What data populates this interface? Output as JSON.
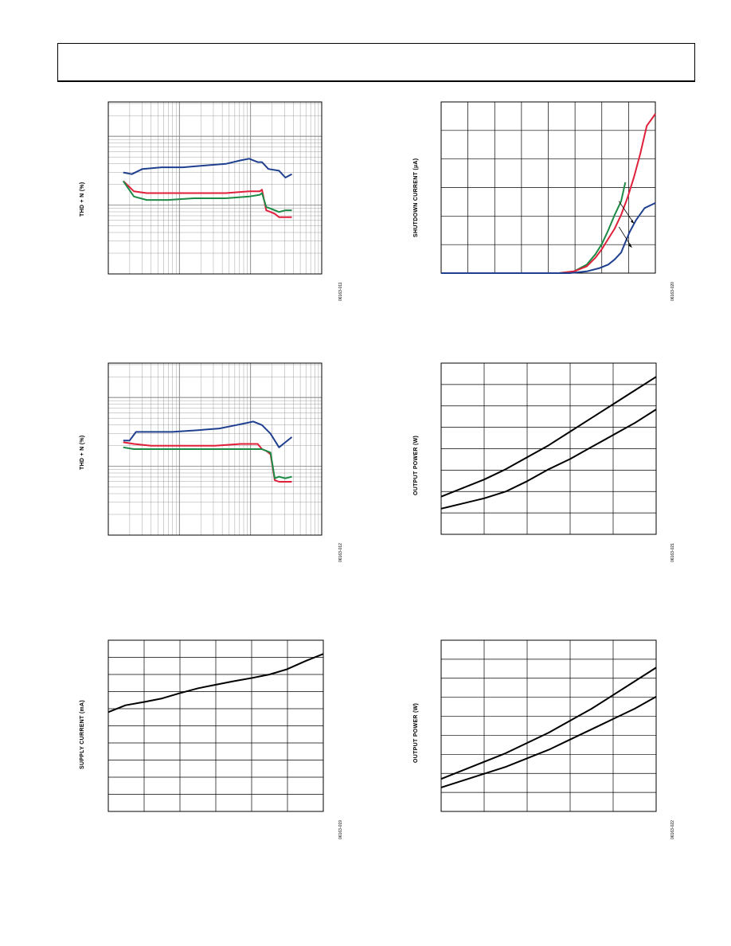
{
  "page": {
    "header_text": ""
  },
  "colors": {
    "blue": "#1f3f8f",
    "red": "#e0203a",
    "green": "#1d8a45",
    "black": "#000000",
    "grid": "#8c8c8c"
  },
  "chart_data": [
    {
      "id": "thd-left-1",
      "type": "line",
      "ylabel": "THD + N (%)",
      "figure_id": "06163-011",
      "xscale": "log",
      "yscale": "log",
      "grid": true,
      "xlim": [
        0,
        1
      ],
      "ylim": [
        0,
        1
      ],
      "series": [
        {
          "color": "blue",
          "x": [
            0.07,
            0.11,
            0.16,
            0.25,
            0.35,
            0.45,
            0.55,
            0.62,
            0.66,
            0.7,
            0.72,
            0.75,
            0.8,
            0.83,
            0.86
          ],
          "y": [
            0.59,
            0.58,
            0.61,
            0.62,
            0.62,
            0.63,
            0.64,
            0.66,
            0.67,
            0.65,
            0.65,
            0.61,
            0.6,
            0.56,
            0.58
          ]
        },
        {
          "color": "red",
          "x": [
            0.07,
            0.12,
            0.18,
            0.28,
            0.4,
            0.55,
            0.66,
            0.71,
            0.72,
            0.74,
            0.76,
            0.78,
            0.8,
            0.83,
            0.86
          ],
          "y": [
            0.54,
            0.48,
            0.47,
            0.47,
            0.47,
            0.47,
            0.48,
            0.48,
            0.49,
            0.37,
            0.36,
            0.35,
            0.33,
            0.33,
            0.33
          ]
        },
        {
          "color": "green",
          "x": [
            0.07,
            0.12,
            0.18,
            0.28,
            0.4,
            0.55,
            0.66,
            0.71,
            0.72,
            0.74,
            0.76,
            0.8,
            0.83,
            0.86
          ],
          "y": [
            0.54,
            0.45,
            0.43,
            0.43,
            0.44,
            0.44,
            0.45,
            0.46,
            0.47,
            0.39,
            0.38,
            0.36,
            0.37,
            0.37
          ]
        }
      ]
    },
    {
      "id": "shutdown-current",
      "type": "line",
      "ylabel": "SHUTDOWN CURRENT (µA)",
      "figure_id": "06163-020",
      "grid": true,
      "xdivs": 8,
      "ydivs": 6,
      "xlim": [
        0,
        1
      ],
      "ylim": [
        0,
        1
      ],
      "annotations": [
        {
          "type": "arrow"
        },
        {
          "type": "arrow"
        }
      ],
      "series": [
        {
          "color": "green",
          "x": [
            0,
            0.55,
            0.62,
            0.68,
            0.72,
            0.75,
            0.78,
            0.81,
            0.84,
            0.86
          ],
          "y": [
            0,
            0,
            0.01,
            0.05,
            0.11,
            0.17,
            0.25,
            0.34,
            0.42,
            0.53
          ]
        },
        {
          "color": "red",
          "x": [
            0,
            0.55,
            0.62,
            0.68,
            0.72,
            0.75,
            0.78,
            0.81,
            0.84,
            0.87,
            0.9,
            0.93,
            0.96,
            1.0
          ],
          "y": [
            0,
            0,
            0.01,
            0.04,
            0.09,
            0.14,
            0.2,
            0.26,
            0.34,
            0.44,
            0.56,
            0.7,
            0.86,
            0.93
          ]
        },
        {
          "color": "blue",
          "x": [
            0,
            0.6,
            0.68,
            0.74,
            0.78,
            0.81,
            0.84,
            0.86,
            0.88,
            0.91,
            0.95,
            1.0
          ],
          "y": [
            0,
            0,
            0.01,
            0.03,
            0.05,
            0.08,
            0.12,
            0.18,
            0.24,
            0.31,
            0.38,
            0.41
          ]
        }
      ]
    },
    {
      "id": "thd-left-2",
      "type": "line",
      "ylabel": "THD + N (%)",
      "figure_id": "06163-012",
      "xscale": "log",
      "yscale": "log",
      "grid": true,
      "xlim": [
        0,
        1
      ],
      "ylim": [
        0,
        1
      ],
      "series": [
        {
          "color": "blue",
          "x": [
            0.07,
            0.1,
            0.13,
            0.2,
            0.3,
            0.42,
            0.52,
            0.6,
            0.64,
            0.68,
            0.72,
            0.76,
            0.8,
            0.83,
            0.86
          ],
          "y": [
            0.55,
            0.55,
            0.6,
            0.6,
            0.6,
            0.61,
            0.62,
            0.64,
            0.65,
            0.66,
            0.64,
            0.59,
            0.51,
            0.54,
            0.57
          ]
        },
        {
          "color": "red",
          "x": [
            0.07,
            0.12,
            0.2,
            0.35,
            0.5,
            0.62,
            0.7,
            0.72,
            0.74,
            0.76,
            0.78,
            0.8,
            0.83,
            0.86
          ],
          "y": [
            0.54,
            0.53,
            0.52,
            0.52,
            0.52,
            0.53,
            0.53,
            0.5,
            0.49,
            0.47,
            0.32,
            0.31,
            0.31,
            0.31
          ]
        },
        {
          "color": "green",
          "x": [
            0.07,
            0.12,
            0.2,
            0.35,
            0.5,
            0.62,
            0.7,
            0.72,
            0.74,
            0.76,
            0.78,
            0.8,
            0.83,
            0.86
          ],
          "y": [
            0.51,
            0.5,
            0.5,
            0.5,
            0.5,
            0.5,
            0.5,
            0.5,
            0.49,
            0.48,
            0.33,
            0.34,
            0.33,
            0.34
          ]
        }
      ]
    },
    {
      "id": "output-power-1",
      "type": "line",
      "ylabel": "OUTPUT POWER (W)",
      "figure_id": "06163-021",
      "grid": true,
      "xdivs": 5,
      "ydivs": 8,
      "xlim": [
        0,
        1
      ],
      "ylim": [
        0,
        1
      ],
      "series": [
        {
          "color": "black",
          "x": [
            0,
            0.1,
            0.2,
            0.3,
            0.4,
            0.5,
            0.6,
            0.7,
            0.8,
            0.9,
            1.0
          ],
          "y": [
            0.22,
            0.27,
            0.32,
            0.38,
            0.45,
            0.52,
            0.6,
            0.68,
            0.76,
            0.84,
            0.92
          ]
        },
        {
          "color": "black",
          "x": [
            0,
            0.1,
            0.2,
            0.3,
            0.4,
            0.5,
            0.6,
            0.7,
            0.8,
            0.9,
            1.0
          ],
          "y": [
            0.15,
            0.18,
            0.21,
            0.25,
            0.31,
            0.38,
            0.44,
            0.51,
            0.58,
            0.65,
            0.73
          ]
        }
      ]
    },
    {
      "id": "supply-current",
      "type": "line",
      "ylabel": "SUPPLY CURRENT (mA)",
      "figure_id": "06163-019",
      "grid": true,
      "xdivs": 6,
      "ydivs": 10,
      "xlim": [
        0,
        1
      ],
      "ylim": [
        0,
        1
      ],
      "series": [
        {
          "color": "black",
          "x": [
            0,
            0.08,
            0.17,
            0.25,
            0.33,
            0.42,
            0.5,
            0.58,
            0.67,
            0.75,
            0.83,
            0.92,
            1.0
          ],
          "y": [
            0.58,
            0.62,
            0.64,
            0.66,
            0.69,
            0.72,
            0.74,
            0.76,
            0.78,
            0.8,
            0.83,
            0.88,
            0.92
          ]
        }
      ]
    },
    {
      "id": "output-power-2",
      "type": "line",
      "ylabel": "OUTPUT POWER (W)",
      "figure_id": "06163-022",
      "grid": true,
      "xdivs": 5,
      "ydivs": 9,
      "xlim": [
        0,
        1
      ],
      "ylim": [
        0,
        1
      ],
      "series": [
        {
          "color": "black",
          "x": [
            0,
            0.1,
            0.2,
            0.3,
            0.4,
            0.5,
            0.6,
            0.7,
            0.8,
            0.9,
            1.0
          ],
          "y": [
            0.19,
            0.24,
            0.29,
            0.34,
            0.4,
            0.46,
            0.53,
            0.6,
            0.68,
            0.76,
            0.84
          ]
        },
        {
          "color": "black",
          "x": [
            0,
            0.1,
            0.2,
            0.3,
            0.4,
            0.5,
            0.6,
            0.7,
            0.8,
            0.9,
            1.0
          ],
          "y": [
            0.14,
            0.18,
            0.22,
            0.26,
            0.31,
            0.36,
            0.42,
            0.48,
            0.54,
            0.6,
            0.67
          ]
        }
      ]
    }
  ]
}
